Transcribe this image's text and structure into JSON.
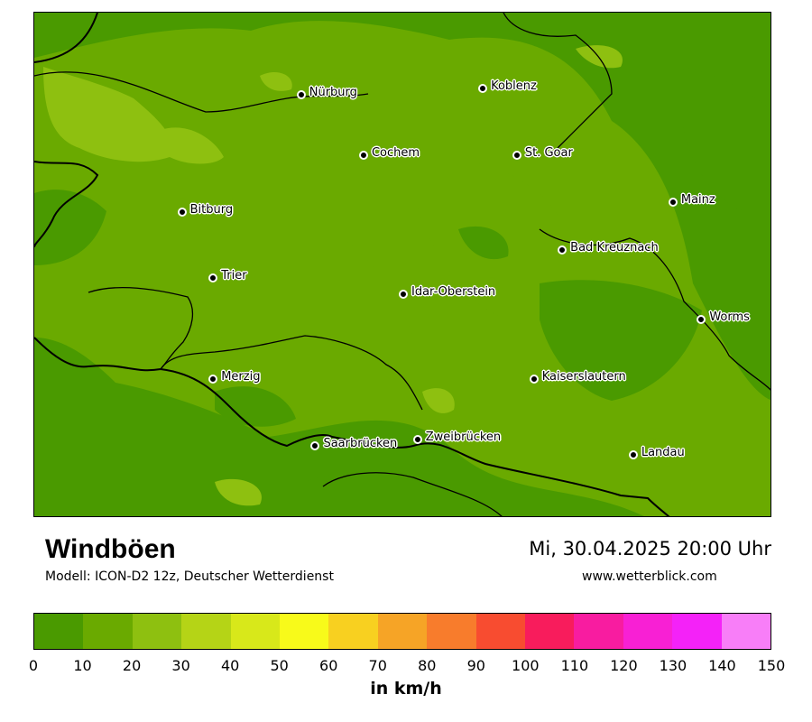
{
  "map": {
    "title": "Windböen",
    "subtitle": "Modell: ICON-D2 12z, Deutscher Wetterdienst",
    "datetime": "Mi, 30.04.2025 20:00 Uhr",
    "website": "www.wetterblick.com",
    "cities": [
      {
        "name": "Nürburg",
        "lat": 50.34,
        "lon": 6.95
      },
      {
        "name": "Koblenz",
        "lat": 50.36,
        "lon": 7.59
      },
      {
        "name": "Cochem",
        "lat": 50.15,
        "lon": 7.17
      },
      {
        "name": "St. Goar",
        "lat": 50.15,
        "lon": 7.71
      },
      {
        "name": "Bitburg",
        "lat": 49.97,
        "lon": 6.53
      },
      {
        "name": "Mainz",
        "lat": 50.0,
        "lon": 8.26
      },
      {
        "name": "Bad Kreuznach",
        "lat": 49.85,
        "lon": 7.87
      },
      {
        "name": "Trier",
        "lat": 49.76,
        "lon": 6.64
      },
      {
        "name": "Idar-Oberstein",
        "lat": 49.71,
        "lon": 7.31
      },
      {
        "name": "Worms",
        "lat": 49.63,
        "lon": 8.36
      },
      {
        "name": "Merzig",
        "lat": 49.44,
        "lon": 6.64
      },
      {
        "name": "Kaiserslautern",
        "lat": 49.44,
        "lon": 7.77
      },
      {
        "name": "Saarbrücken",
        "lat": 49.23,
        "lon": 7.0
      },
      {
        "name": "Zweibrücken",
        "lat": 49.25,
        "lon": 7.36
      },
      {
        "name": "Landau",
        "lat": 49.2,
        "lon": 8.12
      }
    ]
  },
  "legend": {
    "unit": "in km/h",
    "ticks": [
      "0",
      "10",
      "20",
      "30",
      "40",
      "50",
      "60",
      "70",
      "80",
      "90",
      "100",
      "110",
      "120",
      "130",
      "140",
      "150"
    ],
    "colors": [
      "#4a9a00",
      "#6aaa00",
      "#8ec010",
      "#b5d416",
      "#d8e81a",
      "#f8fa1a",
      "#f8d020",
      "#f6a426",
      "#f87c2c",
      "#f84c30",
      "#f81c5c",
      "#f81ca0",
      "#f820d4",
      "#f422f8",
      "#f87ef8"
    ]
  }
}
